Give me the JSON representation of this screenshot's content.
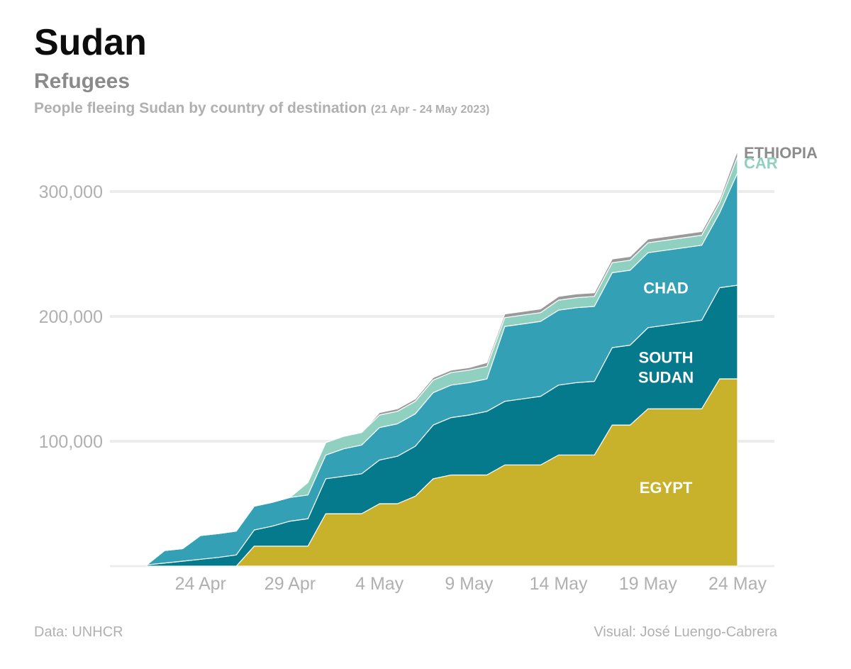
{
  "header": {
    "title": "Sudan",
    "subtitle": "Refugees",
    "description": "People fleeing Sudan by country of destination",
    "date_range": "(21 Apr - 24 May 2023)"
  },
  "footer": {
    "source": "Data: UNHCR",
    "credit": "Visual: José Luengo-Cabrera"
  },
  "chart_data": {
    "type": "area",
    "stacked": true,
    "title": "People fleeing Sudan by country of destination",
    "xlabel": "",
    "ylabel": "",
    "ylim": [
      0,
      320000
    ],
    "xlim": [
      0,
      33
    ],
    "grid": true,
    "x_ticks": [
      {
        "day": 3,
        "label": "24 Apr"
      },
      {
        "day": 8,
        "label": "29 Apr"
      },
      {
        "day": 13,
        "label": "4 May"
      },
      {
        "day": 18,
        "label": "9 May"
      },
      {
        "day": 23,
        "label": "14 May"
      },
      {
        "day": 28,
        "label": "19 May"
      },
      {
        "day": 33,
        "label": "24 May"
      }
    ],
    "y_ticks": [
      {
        "value": 100000,
        "label": "100,000"
      },
      {
        "value": 200000,
        "label": "200,000"
      },
      {
        "value": 300000,
        "label": "300,000"
      }
    ],
    "x_days": [
      0,
      1,
      2,
      3,
      4,
      5,
      6,
      7,
      8,
      9,
      10,
      11,
      12,
      13,
      14,
      15,
      16,
      17,
      18,
      19,
      20,
      21,
      22,
      23,
      24,
      25,
      26,
      27,
      28,
      29,
      30,
      31,
      32,
      33
    ],
    "series": [
      {
        "name": "Egypt",
        "label": "EGYPT",
        "color": "#c9b22b",
        "values": [
          0,
          0,
          0,
          0,
          0,
          0,
          16000,
          16000,
          16000,
          16000,
          42000,
          42000,
          42000,
          50000,
          50000,
          56000,
          70000,
          73000,
          73000,
          73000,
          81000,
          81000,
          81000,
          89000,
          89000,
          89000,
          113000,
          113000,
          126000,
          126000,
          126000,
          126000,
          150000,
          150000
        ]
      },
      {
        "name": "South Sudan",
        "label": "SOUTH SUDAN",
        "color": "#047a8c",
        "values": [
          1000,
          2500,
          4000,
          5500,
          7000,
          9000,
          13000,
          16000,
          20000,
          22000,
          28000,
          30000,
          32000,
          35000,
          38000,
          40000,
          43000,
          46000,
          48000,
          51000,
          51000,
          53000,
          55000,
          56000,
          58000,
          59000,
          62000,
          64000,
          65000,
          67000,
          69000,
          71000,
          73000,
          75000
        ]
      },
      {
        "name": "Chad",
        "label": "CHAD",
        "color": "#33a0b5",
        "values": [
          0,
          10000,
          10000,
          19000,
          19000,
          19000,
          19000,
          19000,
          19000,
          19000,
          19000,
          22000,
          23000,
          26000,
          26000,
          26000,
          26000,
          26000,
          26000,
          26000,
          60000,
          60000,
          60000,
          60000,
          60000,
          60000,
          60000,
          60000,
          60000,
          60000,
          60000,
          60000,
          60000,
          90000
        ]
      },
      {
        "name": "CAR",
        "label": "CAR",
        "color": "#8fd0c0",
        "values": [
          0,
          0,
          0,
          0,
          0,
          0,
          0,
          0,
          0,
          10000,
          10000,
          10000,
          10000,
          10000,
          10000,
          10000,
          10000,
          10000,
          10000,
          10000,
          7000,
          7000,
          7000,
          8000,
          8000,
          8000,
          8000,
          8000,
          8000,
          8000,
          8000,
          8000,
          8000,
          13000
        ]
      },
      {
        "name": "Ethiopia",
        "label": "ETHIOPIA",
        "color": "#9a9a9a",
        "values": [
          0,
          0,
          0,
          0,
          0,
          0,
          0,
          0,
          0,
          0,
          0,
          0,
          0,
          2000,
          2000,
          2000,
          2000,
          2000,
          2000,
          3000,
          3000,
          3000,
          3000,
          3000,
          3000,
          3000,
          3000,
          3000,
          3000,
          3000,
          3000,
          3000,
          3000,
          5000
        ]
      }
    ]
  }
}
